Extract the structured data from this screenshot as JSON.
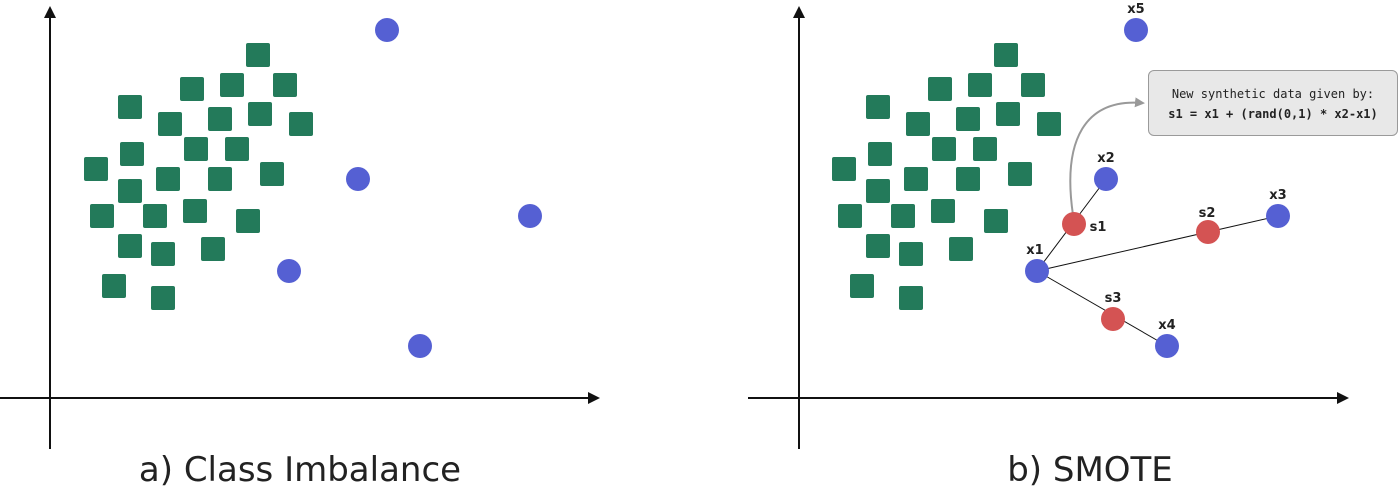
{
  "colors": {
    "majority": "#237a5a",
    "minority": "#5560d3",
    "synthetic": "#d45353",
    "axis": "#111111",
    "arrow": "#999999"
  },
  "panels": [
    {
      "id": "a",
      "caption": "a) Class Imbalance"
    },
    {
      "id": "b",
      "caption": "b) SMOTE"
    }
  ],
  "point_labels": {
    "x1": "x1",
    "x2": "x2",
    "x3": "x3",
    "x4": "x4",
    "x5": "x5",
    "s1": "s1",
    "s2": "s2",
    "s3": "s3"
  },
  "annotation": {
    "line1": "New synthetic data given by:",
    "line2": "s1 = x1 + (rand(0,1) * x2-x1)"
  }
}
